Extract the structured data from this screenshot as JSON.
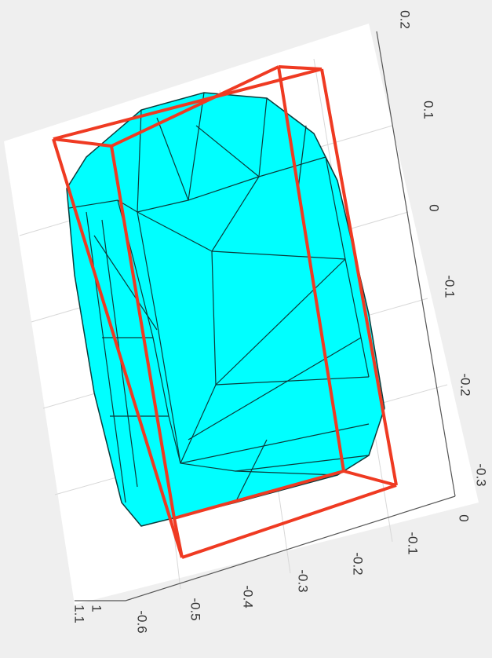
{
  "axes": {
    "right_ticks": [
      "0.2",
      "0.1",
      "0",
      "-0.1",
      "-0.2",
      "-0.3"
    ],
    "bottom_ticks": [
      "0",
      "-0.1",
      "-0.2",
      "-0.3",
      "-0.4",
      "-0.5",
      "-0.6"
    ],
    "depth_ticks": [
      "1.1",
      "1"
    ]
  }
}
